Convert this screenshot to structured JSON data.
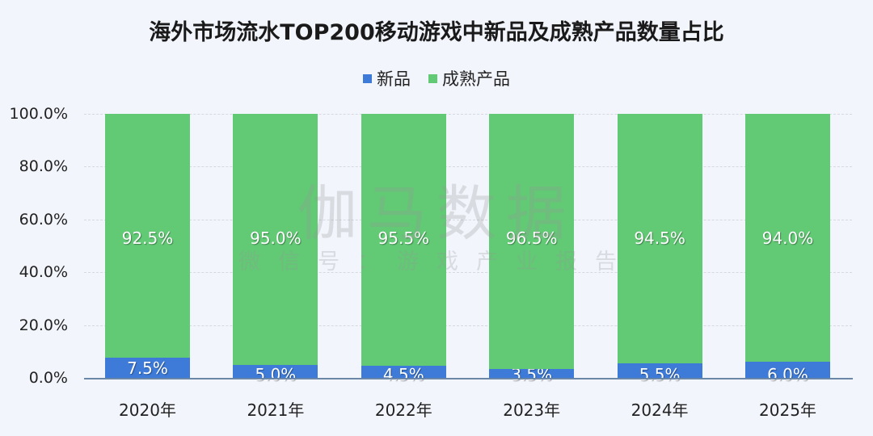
{
  "chart_data": {
    "type": "bar",
    "stacked": true,
    "title": "海外市场流水TOP200移动游戏中新品及成熟产品数量占比",
    "xlabel": "",
    "ylabel": "",
    "categories": [
      "2020年",
      "2021年",
      "2022年",
      "2023年",
      "2024年",
      "2025年"
    ],
    "series": [
      {
        "name": "新品",
        "color": "#3e7bd8",
        "values": [
          7.5,
          5.0,
          4.5,
          3.5,
          5.5,
          6.0
        ],
        "labels": [
          "7.5%",
          "5.0%",
          "4.5%",
          "3.5%",
          "5.5%",
          "6.0%"
        ]
      },
      {
        "name": "成熟产品",
        "color": "#62c975",
        "values": [
          92.5,
          95.0,
          95.5,
          96.5,
          94.5,
          94.0
        ],
        "labels": [
          "92.5%",
          "95.0%",
          "95.5%",
          "96.5%",
          "94.5%",
          "94.0%"
        ]
      }
    ],
    "ylim": [
      0,
      100
    ],
    "yticks": [
      "0.0%",
      "20.0%",
      "40.0%",
      "60.0%",
      "80.0%",
      "100.0%"
    ],
    "grid": true,
    "legend_position": "top"
  },
  "watermark": {
    "main": "伽马数据",
    "sub": "微信号：游戏产业报告"
  }
}
